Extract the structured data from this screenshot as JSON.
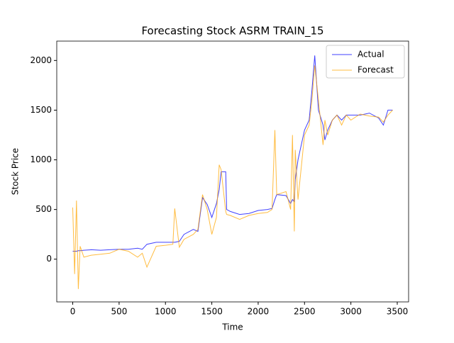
{
  "chart_data": {
    "type": "line",
    "title": "Forecasting Stock ASRM TRAIN_15",
    "xlabel": "Time",
    "ylabel": "Stock Price",
    "x": [
      0,
      20,
      40,
      60,
      80,
      120,
      200,
      300,
      400,
      500,
      600,
      700,
      750,
      800,
      900,
      1000,
      1080,
      1100,
      1150,
      1200,
      1300,
      1350,
      1400,
      1450,
      1500,
      1550,
      1580,
      1600,
      1650,
      1660,
      1700,
      1800,
      1900,
      2000,
      2100,
      2150,
      2180,
      2200,
      2300,
      2350,
      2370,
      2390,
      2400,
      2430,
      2500,
      2550,
      2580,
      2610,
      2650,
      2700,
      2720,
      2750,
      2800,
      2850,
      2900,
      2950,
      3000,
      3100,
      3200,
      3300,
      3350,
      3400,
      3450
    ],
    "series": [
      {
        "name": "Actual",
        "color": "#0000ff",
        "values": [
          80,
          80,
          80,
          85,
          85,
          90,
          95,
          90,
          95,
          100,
          100,
          110,
          100,
          150,
          170,
          170,
          170,
          170,
          180,
          250,
          300,
          280,
          620,
          550,
          420,
          560,
          700,
          880,
          880,
          500,
          480,
          450,
          460,
          490,
          500,
          510,
          600,
          650,
          640,
          560,
          600,
          580,
          800,
          1000,
          1300,
          1400,
          1700,
          2050,
          1500,
          1350,
          1200,
          1300,
          1400,
          1450,
          1400,
          1450,
          1450,
          1450,
          1470,
          1420,
          1350,
          1500,
          1500
        ]
      },
      {
        "name": "Forecast",
        "color": "#ffa500",
        "values": [
          520,
          -150,
          590,
          -300,
          130,
          20,
          40,
          50,
          60,
          100,
          80,
          20,
          60,
          -80,
          130,
          140,
          150,
          510,
          120,
          200,
          250,
          300,
          650,
          500,
          250,
          420,
          950,
          900,
          480,
          450,
          440,
          400,
          440,
          460,
          470,
          500,
          1300,
          650,
          680,
          500,
          1250,
          280,
          1100,
          600,
          1250,
          1350,
          1600,
          1950,
          1600,
          1150,
          1400,
          1250,
          1400,
          1450,
          1350,
          1450,
          1400,
          1460,
          1440,
          1430,
          1380,
          1450,
          1500
        ]
      }
    ],
    "xlim": [
      -172.5,
      3622.5
    ],
    "ylim": [
      -430,
      2195
    ],
    "xticks": [
      0,
      500,
      1000,
      1500,
      2000,
      2500,
      3000,
      3500
    ],
    "yticks": [
      0,
      500,
      1000,
      1500,
      2000
    ],
    "legend": "upper right"
  }
}
